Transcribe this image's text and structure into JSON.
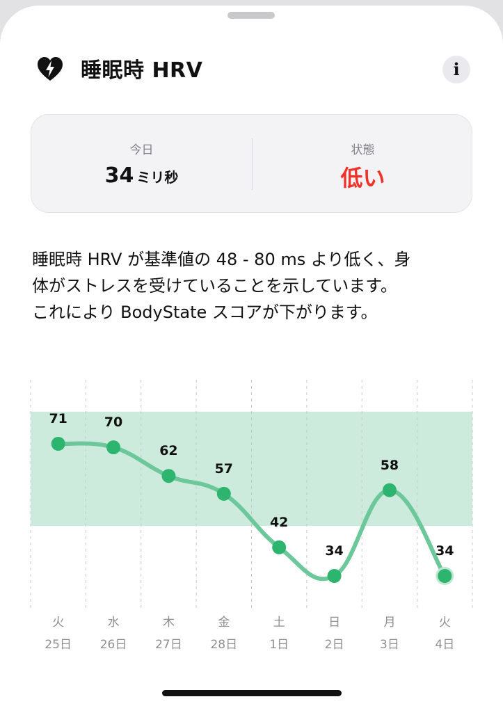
{
  "header": {
    "title": "睡眠時 HRV",
    "icon": "heart-bolt-icon",
    "info_icon": "info-icon",
    "info_glyph": "i"
  },
  "summary": {
    "today_label": "今日",
    "today_value": "34",
    "today_unit": "ミリ秒",
    "status_label": "状態",
    "status_value": "低い",
    "status_color": "#f0322a"
  },
  "description": {
    "line1": "睡眠時 HRV が基準値の 48 - 80 ms より低く、身",
    "line2": "体がストレスを受けていることを示しています。",
    "line3": "これにより BodyState スコアが下がります。"
  },
  "chart_data": {
    "type": "line",
    "categories": [
      {
        "weekday": "火",
        "date": "25日"
      },
      {
        "weekday": "水",
        "date": "26日"
      },
      {
        "weekday": "木",
        "date": "27日"
      },
      {
        "weekday": "金",
        "date": "28日"
      },
      {
        "weekday": "土",
        "date": "1日"
      },
      {
        "weekday": "日",
        "date": "2日"
      },
      {
        "weekday": "月",
        "date": "3日"
      },
      {
        "weekday": "火",
        "date": "4日"
      }
    ],
    "values": [
      71,
      70,
      62,
      57,
      42,
      34,
      58,
      34
    ],
    "baseline_range": [
      48,
      80
    ],
    "ylim": [
      28,
      88
    ],
    "line_color": "#6cc79a",
    "point_color": "#2db46e",
    "band_color": "#cdebdc",
    "grid": "vertical-dashed"
  },
  "colors": {
    "accent_green": "#2db46e",
    "status_red": "#f0322a"
  }
}
